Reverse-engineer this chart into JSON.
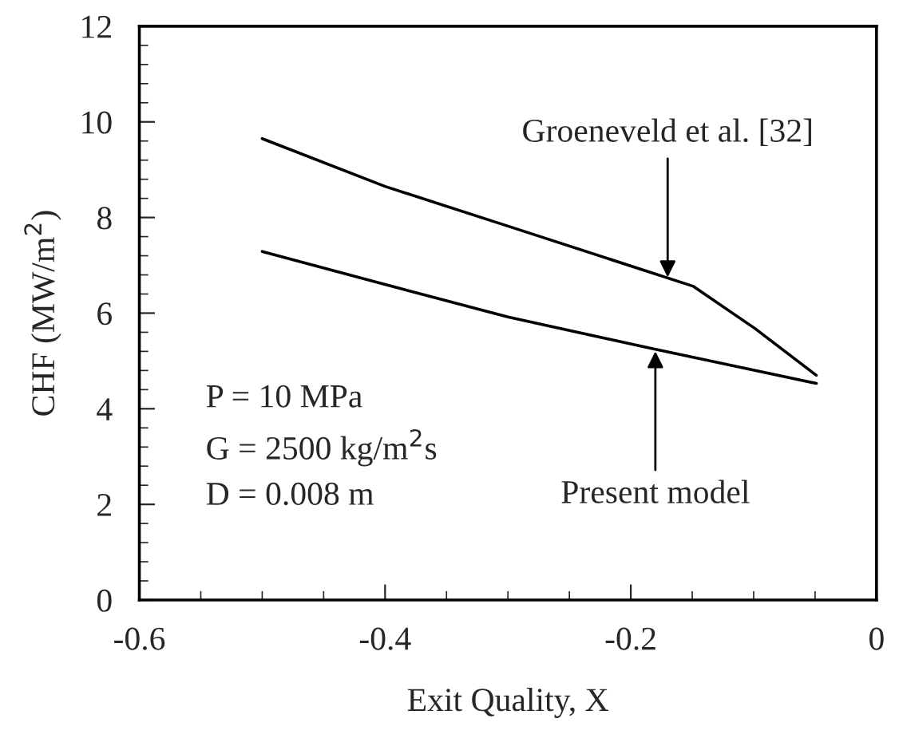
{
  "chart_data": {
    "type": "line",
    "xlabel": "Exit Quality, X",
    "ylabel": "CHF (MW/m$^{2}$)",
    "xlim": [
      -0.6,
      0
    ],
    "xticks": [
      -0.6,
      -0.4,
      -0.2,
      0
    ],
    "ylim": [
      0,
      12
    ],
    "yticks": [
      0,
      2,
      4,
      6,
      8,
      10,
      12
    ],
    "grid": false,
    "legend": false,
    "marker": "none",
    "line_style": "solid",
    "series": [
      {
        "color": "#000000",
        "x": [
          -0.5,
          -0.4,
          -0.3,
          -0.149,
          -0.099,
          -0.049
        ],
        "values": [
          9.65,
          8.65,
          7.82,
          6.56,
          5.68,
          4.7
        ]
      },
      {
        "color": "#000000",
        "x": [
          -0.5,
          -0.4,
          -0.3,
          -0.183,
          -0.049
        ],
        "values": [
          7.29,
          6.6,
          5.92,
          5.26,
          4.53
        ]
      }
    ],
    "annotations": [
      {
        "text": "Groeneveld et al. [32]",
        "x": -0.17,
        "y": 6.75
      },
      {
        "text": "Present model",
        "x": -0.18,
        "y": 5.2
      },
      "P = 10 MPa",
      "G = 2500 kg/m$^{2}$s",
      "D = 0.008 m"
    ]
  }
}
